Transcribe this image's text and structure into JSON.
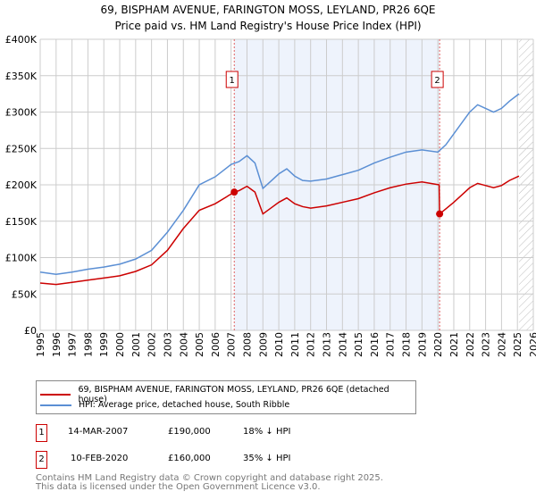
{
  "chart_data": {
    "type": "line",
    "title": "69, BISPHAM AVENUE, FARINGTON MOSS, LEYLAND, PR26 6QE",
    "subtitle": "Price paid vs. HM Land Registry's House Price Index (HPI)",
    "xlim": [
      1995,
      2026
    ],
    "ylim": [
      0,
      400000
    ],
    "x_ticks": [
      "1995",
      "1996",
      "1997",
      "1998",
      "1999",
      "2000",
      "2001",
      "2002",
      "2003",
      "2004",
      "2005",
      "2006",
      "2007",
      "2008",
      "2009",
      "2010",
      "2011",
      "2012",
      "2013",
      "2014",
      "2015",
      "2016",
      "2017",
      "2018",
      "2019",
      "2020",
      "2021",
      "2022",
      "2023",
      "2024",
      "2025",
      "2026"
    ],
    "y_ticks": [
      {
        "v": 0,
        "l": "£0"
      },
      {
        "v": 50000,
        "l": "£50K"
      },
      {
        "v": 100000,
        "l": "£100K"
      },
      {
        "v": 150000,
        "l": "£150K"
      },
      {
        "v": 200000,
        "l": "£200K"
      },
      {
        "v": 250000,
        "l": "£250K"
      },
      {
        "v": 300000,
        "l": "£300K"
      },
      {
        "v": 350000,
        "l": "£350K"
      },
      {
        "v": 400000,
        "l": "£400K"
      }
    ],
    "grid": true,
    "series": [
      {
        "name": "69, BISPHAM AVENUE, FARINGTON MOSS, LEYLAND, PR26 6QE (detached house)",
        "color": "#cc0000",
        "x": [
          1995,
          1996,
          1997,
          1998,
          1999,
          2000,
          2001,
          2002,
          2003,
          2004,
          2005,
          2006,
          2007.2,
          2007.5,
          2008,
          2008.5,
          2009,
          2009.5,
          2010,
          2010.5,
          2011,
          2011.5,
          2012,
          2013,
          2014,
          2015,
          2016,
          2017,
          2018,
          2019,
          2020.08,
          2020.11,
          2020.5,
          2021,
          2021.5,
          2022,
          2022.5,
          2023,
          2023.5,
          2024,
          2024.5,
          2025.1
        ],
        "y": [
          65000,
          63000,
          66000,
          69000,
          72000,
          75000,
          81000,
          90000,
          110000,
          140000,
          165000,
          174000,
          190000,
          192000,
          198000,
          190000,
          160000,
          168000,
          176000,
          182000,
          174000,
          170000,
          168000,
          171000,
          176000,
          181000,
          189000,
          196000,
          201000,
          204000,
          200000,
          160000,
          167000,
          176000,
          186000,
          196000,
          202000,
          199000,
          196000,
          199000,
          206000,
          212000
        ]
      },
      {
        "name": "HPI: Average price, detached house, South Ribble",
        "color": "#5b8fd4",
        "x": [
          1995,
          1996,
          1997,
          1998,
          1999,
          2000,
          2001,
          2002,
          2003,
          2004,
          2005,
          2006,
          2007,
          2007.5,
          2008,
          2008.5,
          2009,
          2009.5,
          2010,
          2010.5,
          2011,
          2011.5,
          2012,
          2013,
          2014,
          2015,
          2016,
          2017,
          2018,
          2019,
          2020,
          2020.5,
          2021,
          2021.5,
          2022,
          2022.5,
          2023,
          2023.5,
          2024,
          2024.5,
          2025.1
        ],
        "y": [
          80000,
          77000,
          80000,
          84000,
          87000,
          91000,
          98000,
          110000,
          135000,
          165000,
          200000,
          211000,
          228000,
          232000,
          240000,
          230000,
          195000,
          205000,
          215000,
          222000,
          212000,
          206000,
          205000,
          208000,
          214000,
          220000,
          230000,
          238000,
          245000,
          248000,
          245000,
          255000,
          270000,
          285000,
          300000,
          310000,
          305000,
          300000,
          305000,
          315000,
          325000
        ]
      }
    ],
    "annotations": [
      {
        "label": "1",
        "x": 2007.2,
        "y": 190000
      },
      {
        "label": "2",
        "x": 2020.11,
        "y": 160000
      }
    ],
    "shaded_range": [
      2007.2,
      2020.11
    ],
    "forecast_hatch_from": 2025.1,
    "legend_position": "below"
  },
  "transactions": [
    {
      "num": "1",
      "date": "14-MAR-2007",
      "price": "£190,000",
      "hpi": "18% ↓ HPI"
    },
    {
      "num": "2",
      "date": "10-FEB-2020",
      "price": "£160,000",
      "hpi": "35% ↓ HPI"
    }
  ],
  "footer": [
    "Contains HM Land Registry data © Crown copyright and database right 2025.",
    "This data is licensed under the Open Government Licence v3.0."
  ]
}
